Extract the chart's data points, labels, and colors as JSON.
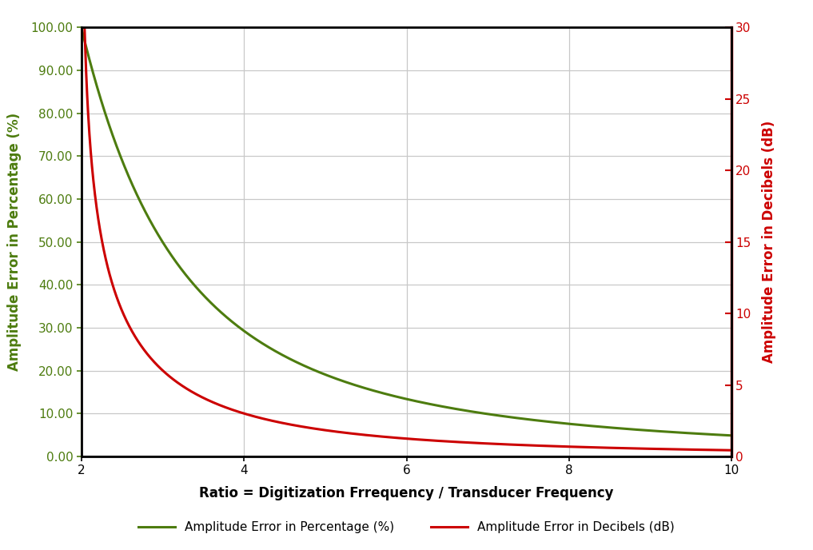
{
  "x_min": 2.0,
  "x_max": 10.0,
  "x_ticks": [
    2,
    4,
    6,
    8,
    10
  ],
  "xlabel": "Ratio = Digitization Frrequency / Transducer Frequency",
  "ylabel_left": "Amplitude Error in Percentage (%)",
  "ylabel_right": "Amplitude Error in Decibels (dB)",
  "left_ylim": [
    0,
    100
  ],
  "left_yticks": [
    0.0,
    10.0,
    20.0,
    30.0,
    40.0,
    50.0,
    60.0,
    70.0,
    80.0,
    90.0,
    100.0
  ],
  "right_ylim": [
    0,
    30
  ],
  "right_yticks": [
    0,
    5,
    10,
    15,
    20,
    25,
    30
  ],
  "line_color_pct": "#4d7c0f",
  "line_color_db": "#cc0000",
  "line_width": 2.2,
  "legend_label_pct": "Amplitude Error in Percentage (%)",
  "legend_label_db": "Amplitude Error in Decibels (dB)",
  "background_color": "#ffffff",
  "grid_color": "#c8c8c8",
  "left_label_color": "#4d7c0f",
  "right_label_color": "#cc0000",
  "xlabel_color": "#000000",
  "axis_color": "#000000",
  "tick_color_left": "#4d7c0f",
  "tick_color_right": "#cc0000",
  "left_spine_color": "#4d7c0f",
  "right_spine_color": "#cc0000",
  "bottom_spine_color": "#000000",
  "xlabel_fontsize": 12,
  "ylabel_fontsize": 12,
  "tick_fontsize": 11,
  "legend_fontsize": 11,
  "db_clip_max": 30.0,
  "n_points": 2000,
  "outer_border_color": "#000000",
  "outer_border_lw": 2.0
}
